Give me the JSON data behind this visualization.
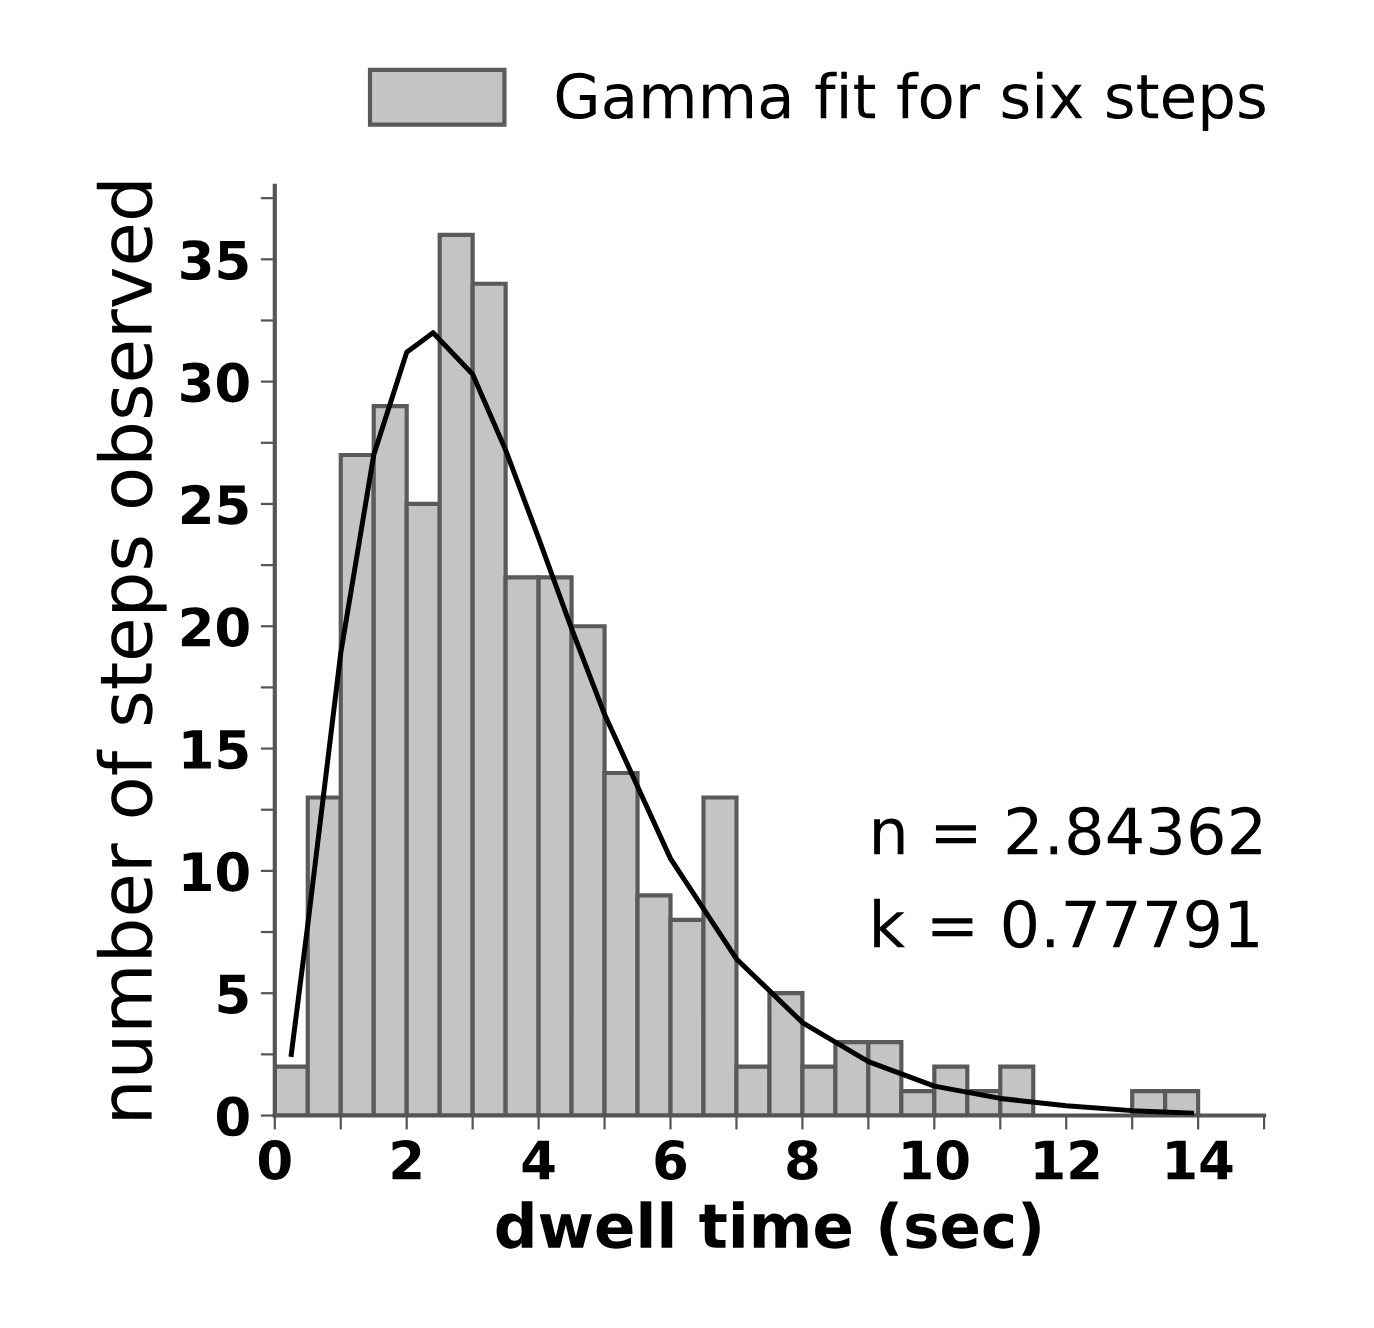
{
  "chart_data": {
    "type": "histogram",
    "xlabel": "dwell time (sec)",
    "ylabel": "number of steps observed",
    "series": [
      {
        "name": "Gamma fit for six steps",
        "color": "#c4c4c4",
        "bins": [
          0,
          0.5,
          1,
          1.5,
          2,
          2.5,
          3,
          3.5,
          4,
          4.5,
          5,
          5.5,
          6,
          6.5,
          7,
          7.5,
          8,
          8.5,
          9,
          9.5,
          10,
          10.5,
          11,
          11.5,
          12,
          12.5,
          13,
          13.5,
          14
        ],
        "values": [
          2,
          13,
          27,
          29,
          25,
          36,
          34,
          22,
          22,
          20,
          14,
          9,
          8,
          13,
          2,
          5,
          2,
          3,
          3,
          1,
          2,
          1,
          2,
          0,
          0,
          0,
          1,
          1
        ]
      },
      {
        "type": "line",
        "color": "#000000",
        "x": [
          0.25,
          0.5,
          1,
          1.5,
          2,
          2.4,
          3,
          3.5,
          4,
          4.5,
          5,
          6,
          7,
          8,
          9,
          10,
          11,
          12,
          13,
          13.9
        ],
        "values": [
          2.5,
          7.8,
          18.9,
          27,
          31.2,
          32,
          30.3,
          27.2,
          23.6,
          19.9,
          16.4,
          10.5,
          6.4,
          3.8,
          2.2,
          1.2,
          0.7,
          0.4,
          0.2,
          0.1
        ]
      }
    ],
    "xlim": [
      0,
      15
    ],
    "xticks": [
      0,
      {
        "value": 1,
        "label": null
      },
      2,
      {
        "value": 3,
        "label": null
      },
      4,
      {
        "value": 5,
        "label": null
      },
      6,
      {
        "value": 7,
        "label": null
      },
      8,
      {
        "value": 9,
        "label": null
      },
      10,
      {
        "value": 11,
        "label": null
      },
      12,
      {
        "value": 13,
        "label": null
      },
      14,
      {
        "value": 15,
        "label": null
      }
    ],
    "ylim": [
      0,
      38
    ],
    "yticks": [
      0,
      {
        "value": 2.5,
        "label": null
      },
      5,
      {
        "value": 7.5,
        "label": null
      },
      10,
      {
        "value": 12.5,
        "label": null
      },
      15,
      {
        "value": 17.5,
        "label": null
      },
      20,
      {
        "value": 22.5,
        "label": null
      },
      25,
      {
        "value": 27.5,
        "label": null
      },
      30,
      {
        "value": 32.5,
        "label": null
      },
      35,
      {
        "value": 37.5,
        "label": null
      }
    ],
    "annotations": [
      "n = 2.84362",
      "k = 0.77791"
    ],
    "legend": "top",
    "grid": false
  }
}
